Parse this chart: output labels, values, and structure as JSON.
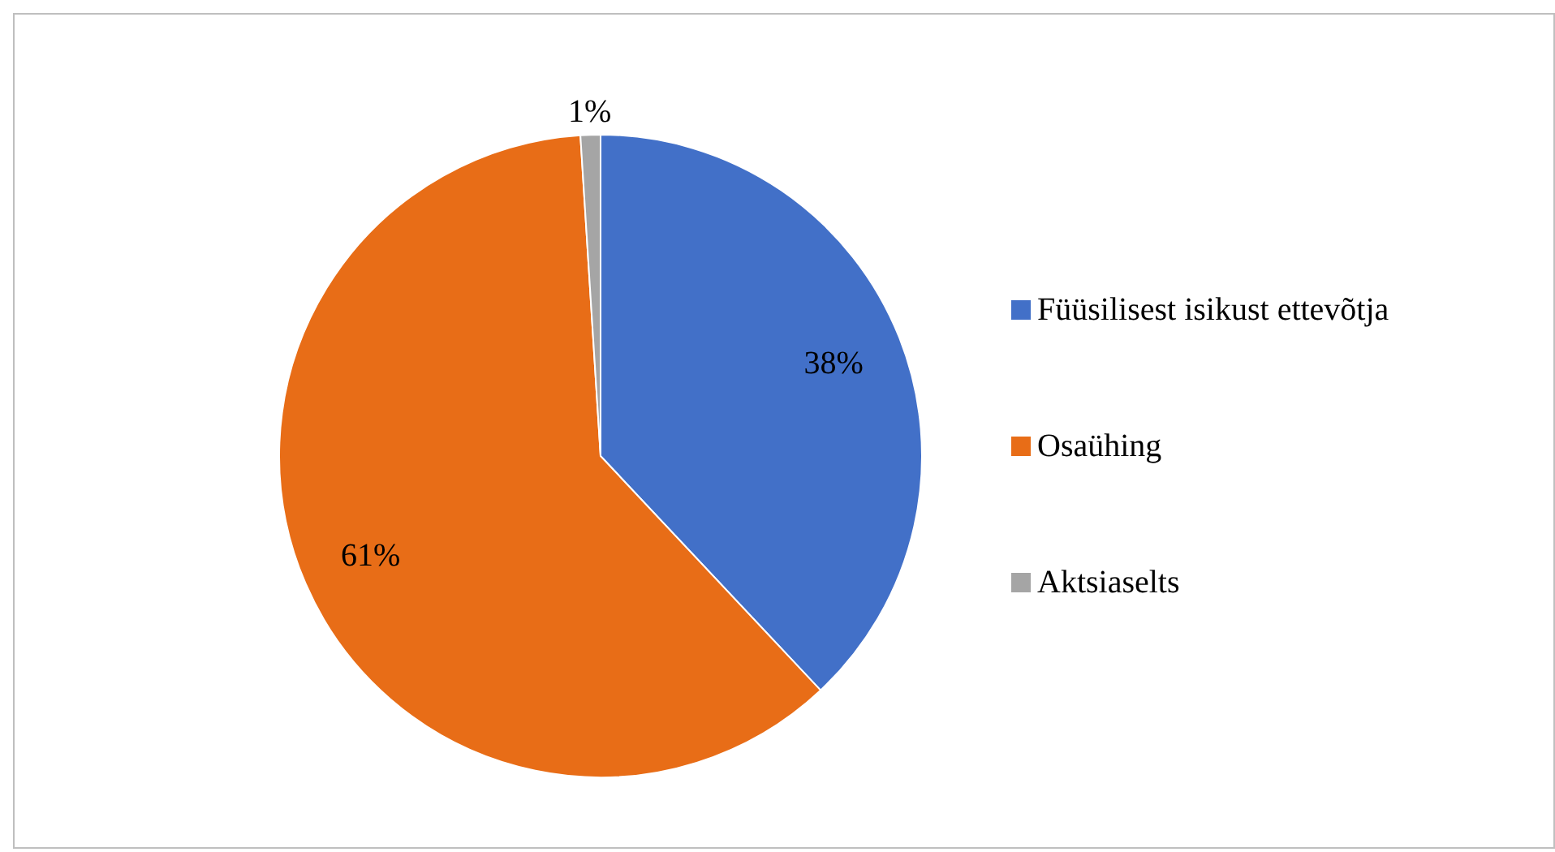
{
  "chart_data": {
    "type": "pie",
    "categories": [
      "Füüsilisest isikust ettevõtja",
      "Osaühing",
      "Aktsiaselts"
    ],
    "values": [
      38,
      61,
      1
    ],
    "colors": [
      "#4270c8",
      "#e86d17",
      "#a5a5a5"
    ],
    "value_labels": [
      "38%",
      "61%",
      "1%"
    ],
    "legend": "right"
  }
}
